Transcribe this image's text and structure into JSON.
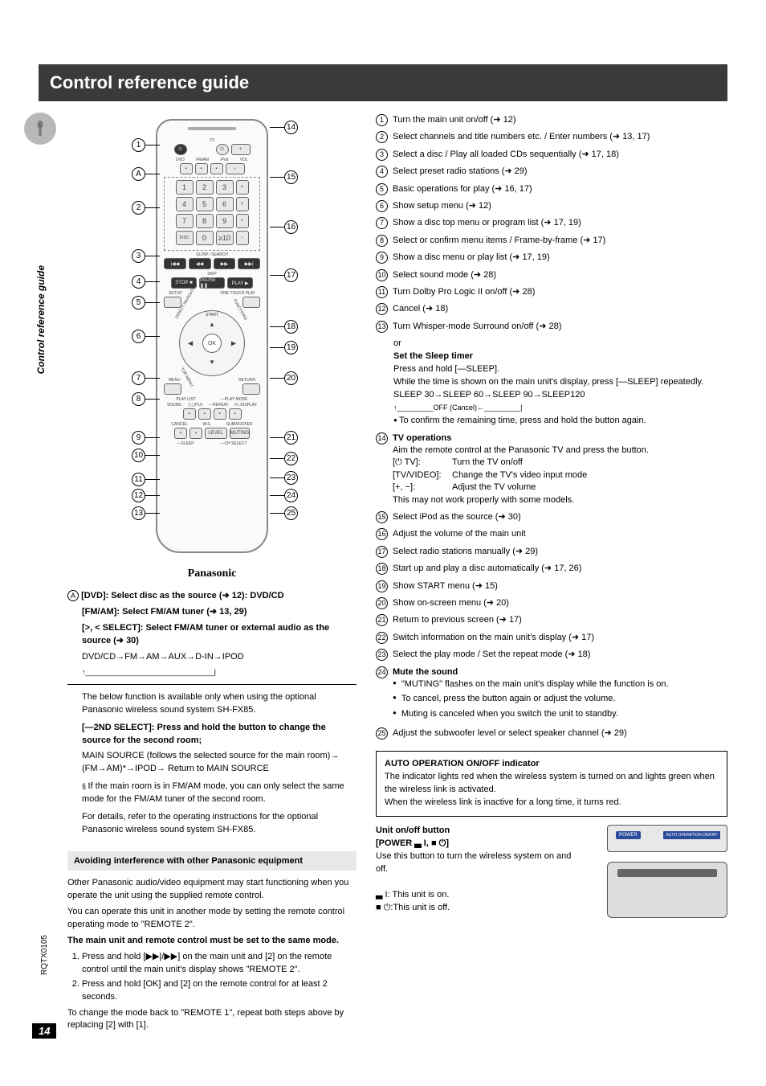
{
  "header": {
    "title": "Control reference guide"
  },
  "sidebar": {
    "label": "Control reference guide"
  },
  "remote": {
    "brand": "Panasonic"
  },
  "leftCallouts": [
    "1",
    "A",
    "2",
    "3",
    "4",
    "5",
    "6",
    "7",
    "8",
    "9",
    "10",
    "11",
    "12",
    "13"
  ],
  "rightCallouts": [
    "14",
    "15",
    "16",
    "17",
    "18",
    "19",
    "20",
    "21",
    "22",
    "23",
    "24",
    "25"
  ],
  "noteA": {
    "tag": "A",
    "dvd": "[DVD]: Select disc as the source (➜ 12): DVD/CD",
    "fmam": "[FM/AM]: Select FM/AM tuner (➜ 13, 29)",
    "select": "[>, < SELECT]: Select FM/AM tuner or external audio as the source (➜ 30)",
    "chain": "DVD/CD→FM→AM→AUX→D-IN→IPOD",
    "arrow": "↑________________________________|",
    "optional": "The below function is available only when using the optional Panasonic wireless sound system SH-FX85.",
    "second_sel": "[—2ND SELECT]: Press and hold the button to change the source for the second room;",
    "mainsrc": "MAIN SOURCE (follows the selected source for the main room)→ (FM→AM)*→IPOD→ Return to MAIN SOURCE",
    "asterisk": "If the main room is in FM/AM mode, you can only select the same mode for the FM/AM tuner of the second room.",
    "details": "For details, refer to the operating instructions for the optional Panasonic wireless sound system SH-FX85."
  },
  "interference": {
    "title": "Avoiding interference with other Panasonic equipment",
    "p1": "Other Panasonic audio/video equipment may start functioning when you operate the unit using the supplied remote control.",
    "p2": "You can operate this unit in another mode by setting the remote control operating mode to \"REMOTE 2\".",
    "bold": "The main unit and remote control must be set to the same mode.",
    "step1": "Press and hold [▶▶|/▶▶] on the main unit and [2] on the remote control until the main unit's display shows \"REMOTE 2\".",
    "step2": "Press and hold [OK] and [2] on the remote control for at least 2 seconds.",
    "p3": "To change the mode back to \"REMOTE 1\", repeat both steps above by replacing [2] with [1]."
  },
  "rightItems": [
    {
      "n": "1",
      "t": "Turn the main unit on/off (➜ 12)"
    },
    {
      "n": "2",
      "t": "Select channels and title numbers etc. / Enter numbers (➜ 13, 17)"
    },
    {
      "n": "3",
      "t": "Select a disc / Play all loaded CDs sequentially (➜ 17, 18)"
    },
    {
      "n": "4",
      "t": "Select preset radio stations (➜ 29)"
    },
    {
      "n": "5",
      "t": "Basic operations for play (➜ 16, 17)"
    },
    {
      "n": "6",
      "t": "Show setup menu (➜ 12)"
    },
    {
      "n": "7",
      "t": "Show a disc top menu or program list (➜ 17, 19)"
    },
    {
      "n": "8",
      "t": "Select or confirm menu items / Frame-by-frame (➜ 17)"
    },
    {
      "n": "9",
      "t": "Show a disc menu or play list (➜ 17, 19)"
    },
    {
      "n": "10",
      "t": "Select sound mode (➜ 28)"
    },
    {
      "n": "11",
      "t": "Turn Dolby Pro Logic II on/off (➜ 28)"
    },
    {
      "n": "12",
      "t": "Cancel (➜ 18)"
    },
    {
      "n": "13",
      "t": "Turn Whisper-mode Surround on/off (➜ 28)"
    }
  ],
  "item13sub": {
    "or": "or",
    "title": "Set the Sleep timer",
    "l1": "Press and hold [—SLEEP].",
    "l2": "While the time is shown on the main unit's display, press [—SLEEP] repeatedly.",
    "l3": "SLEEP 30→SLEEP 60→SLEEP 90→SLEEP120",
    "l4": "↑_________OFF (Cancel)←_________|",
    "l5": "To confirm the remaining time, press and hold the button again."
  },
  "item14": {
    "n": "14",
    "title": "TV operations",
    "l1": "Aim the remote control at the Panasonic TV and press the button.",
    "l2a": "[⏻ TV]:",
    "l2b": "Turn the TV on/off",
    "l3a": "[TV/VIDEO]:",
    "l3b": "Change the TV's video input mode",
    "l4a": "[+, −]:",
    "l4b": "Adjust the TV volume",
    "l5": "This may not work properly with some models."
  },
  "rightItems2": [
    {
      "n": "15",
      "t": "Select iPod as the source (➜ 30)"
    },
    {
      "n": "16",
      "t": "Adjust the volume of the main unit"
    },
    {
      "n": "17",
      "t": "Select radio stations manually (➜ 29)"
    },
    {
      "n": "18",
      "t": "Start up and play a disc automatically (➜ 17, 26)"
    },
    {
      "n": "19",
      "t": "Show START menu (➜ 15)"
    },
    {
      "n": "20",
      "t": "Show on-screen menu (➜ 20)"
    },
    {
      "n": "21",
      "t": "Return to previous screen (➜ 17)"
    },
    {
      "n": "22",
      "t": "Switch information on the main unit's display (➜ 17)"
    },
    {
      "n": "23",
      "t": "Select the play mode / Set the repeat mode (➜ 18)"
    }
  ],
  "item24": {
    "n": "24",
    "title": "Mute the sound",
    "b1": "\"MUTING\" flashes on the main unit's display while the function is on.",
    "b2": "To cancel, press the button again or adjust the volume.",
    "b3": "Muting is canceled when you switch the unit to standby."
  },
  "item25": {
    "n": "25",
    "t": "Adjust the subwoofer level or select speaker channel (➜ 29)"
  },
  "autoBox": {
    "title": "AUTO OPERATION ON/OFF indicator",
    "l1": "The indicator lights red when the wireless system is turned on and lights green when the wireless link is activated.",
    "l2": "When the wireless link is inactive for a long time, it turns red."
  },
  "unitButton": {
    "title": "Unit on/off button",
    "sub": "[POWER ▃ I, ■ ⏻]",
    "l1": "Use this button to turn the wireless system on and off.",
    "l2": "▃ I: This unit is on.",
    "l3": "■ ⏻:This unit is off."
  },
  "device": {
    "power": "POWER",
    "ind": "AUTO OPERATION ON/OFF"
  },
  "footer": {
    "code": "RQTX0105",
    "page": "14"
  }
}
